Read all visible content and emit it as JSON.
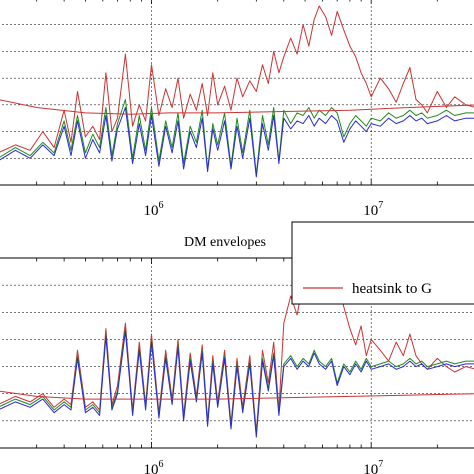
{
  "colors": {
    "red": "#cc3333",
    "green": "#1f8a1f",
    "blue": "#2a2ad4",
    "axis": "#000000"
  },
  "chart_data": [
    {
      "type": "line",
      "title": "",
      "xscale": "log",
      "xlim": [
        200000,
        30000000
      ],
      "ylim": [
        0,
        7
      ],
      "grid": true,
      "xticks": [
        {
          "base": "10",
          "exp": "6",
          "value": 1000000
        },
        {
          "base": "10",
          "exp": "7",
          "value": 10000000
        }
      ],
      "series": [
        {
          "color": "red",
          "x": [
            200000,
            240000,
            280000,
            320000,
            360000,
            400000,
            430000,
            460000,
            500000,
            540000,
            580000,
            620000,
            660000,
            700000,
            760000,
            820000,
            880000,
            940000,
            1000000,
            1080000,
            1160000,
            1240000,
            1320000,
            1400000,
            1500000,
            1600000,
            1700000,
            1800000,
            1900000,
            2000000,
            2150000,
            2300000,
            2450000,
            2600000,
            2800000,
            3000000,
            3200000,
            3400000,
            3600000,
            3800000,
            4000000,
            4300000,
            4600000,
            4900000,
            5200000,
            5500000,
            5800000,
            6200000,
            6600000,
            7000000,
            7500000,
            8000000,
            8500000,
            9000000,
            9500000,
            10000000,
            11000000,
            12000000,
            13000000,
            14000000,
            15000000,
            16000000,
            17000000,
            18000000,
            20000000,
            22000000,
            24000000,
            27000000,
            30000000
          ],
          "y": [
            1.2,
            1.5,
            1.3,
            2.0,
            1.4,
            2.8,
            1.6,
            3.5,
            1.8,
            2.2,
            1.7,
            4.2,
            2.0,
            2.5,
            4.9,
            2.2,
            3.0,
            2.4,
            4.5,
            2.6,
            3.6,
            2.9,
            4.0,
            2.5,
            3.4,
            2.8,
            3.8,
            2.6,
            4.2,
            3.0,
            3.7,
            2.8,
            4.0,
            3.3,
            3.9,
            3.5,
            4.5,
            3.8,
            5.0,
            4.2,
            4.8,
            5.5,
            4.9,
            6.0,
            5.2,
            6.2,
            6.7,
            6.3,
            5.6,
            6.5,
            5.8,
            5.2,
            4.8,
            4.2,
            3.8,
            3.3,
            4.0,
            3.6,
            3.1,
            3.8,
            4.4,
            3.2,
            3.0,
            2.7,
            3.5,
            2.9,
            3.3,
            3.0,
            2.9
          ]
        },
        {
          "color": "green",
          "x": [
            200000,
            240000,
            280000,
            320000,
            360000,
            400000,
            430000,
            460000,
            500000,
            540000,
            580000,
            620000,
            660000,
            700000,
            760000,
            820000,
            880000,
            940000,
            1000000,
            1080000,
            1160000,
            1240000,
            1320000,
            1400000,
            1500000,
            1600000,
            1700000,
            1800000,
            1900000,
            2000000,
            2150000,
            2300000,
            2450000,
            2600000,
            2800000,
            3000000,
            3200000,
            3400000,
            3600000,
            3800000,
            4000000,
            4300000,
            4600000,
            4900000,
            5200000,
            5500000,
            5800000,
            6200000,
            6600000,
            7000000,
            7500000,
            8000000,
            8500000,
            9000000,
            9500000,
            10000000,
            11000000,
            12000000,
            13000000,
            14000000,
            15000000,
            16000000,
            17000000,
            18000000,
            20000000,
            22000000,
            24000000,
            27000000,
            30000000
          ],
          "y": [
            1.0,
            1.4,
            1.1,
            1.6,
            1.2,
            2.4,
            1.3,
            2.6,
            1.2,
            1.9,
            1.4,
            2.9,
            1.1,
            2.3,
            3.2,
            1.0,
            2.6,
            1.3,
            2.9,
            0.9,
            2.4,
            1.4,
            2.7,
            0.8,
            2.2,
            1.6,
            2.8,
            0.6,
            2.3,
            1.5,
            2.7,
            0.7,
            2.5,
            1.2,
            2.8,
            0.4,
            2.6,
            1.5,
            2.9,
            0.9,
            2.8,
            2.3,
            2.7,
            2.6,
            2.9,
            2.5,
            2.8,
            2.6,
            2.9,
            2.7,
            1.8,
            2.3,
            2.6,
            2.4,
            2.2,
            2.5,
            2.4,
            2.7,
            2.5,
            2.6,
            2.8,
            2.6,
            2.7,
            2.5,
            2.6,
            2.8,
            2.6,
            2.7,
            2.7
          ]
        },
        {
          "color": "blue",
          "x": [
            200000,
            240000,
            280000,
            320000,
            360000,
            400000,
            430000,
            460000,
            500000,
            540000,
            580000,
            620000,
            660000,
            700000,
            760000,
            820000,
            880000,
            940000,
            1000000,
            1080000,
            1160000,
            1240000,
            1320000,
            1400000,
            1500000,
            1600000,
            1700000,
            1800000,
            1900000,
            2000000,
            2150000,
            2300000,
            2450000,
            2600000,
            2800000,
            3000000,
            3200000,
            3400000,
            3600000,
            3800000,
            4000000,
            4300000,
            4600000,
            4900000,
            5200000,
            5500000,
            5800000,
            6200000,
            6600000,
            7000000,
            7500000,
            8000000,
            8500000,
            9000000,
            9500000,
            10000000,
            11000000,
            12000000,
            13000000,
            14000000,
            15000000,
            16000000,
            17000000,
            18000000,
            20000000,
            22000000,
            24000000,
            27000000,
            30000000
          ],
          "y": [
            0.9,
            1.3,
            1.0,
            1.5,
            1.1,
            2.2,
            1.1,
            2.4,
            1.0,
            1.7,
            1.2,
            2.6,
            0.9,
            2.1,
            2.9,
            0.8,
            2.3,
            1.1,
            2.6,
            0.7,
            2.2,
            1.2,
            2.4,
            0.6,
            2.0,
            1.4,
            2.5,
            0.5,
            2.1,
            1.3,
            2.4,
            0.6,
            2.2,
            1.0,
            2.5,
            0.3,
            2.3,
            1.3,
            2.6,
            0.8,
            2.5,
            2.1,
            2.4,
            2.3,
            2.6,
            2.2,
            2.5,
            2.3,
            2.6,
            2.4,
            1.6,
            2.1,
            2.4,
            2.2,
            2.0,
            2.3,
            2.2,
            2.5,
            2.3,
            2.4,
            2.6,
            2.4,
            2.5,
            2.3,
            2.4,
            2.6,
            2.4,
            2.5,
            2.5
          ]
        },
        {
          "color": "red",
          "x": [
            200000,
            300000,
            500000,
            800000,
            1200000,
            2000000,
            4000000,
            8000000,
            15000000,
            30000000
          ],
          "y": [
            3.2,
            2.9,
            2.7,
            2.65,
            2.7,
            2.7,
            2.75,
            2.8,
            2.9,
            3.0
          ]
        }
      ]
    },
    {
      "type": "line",
      "title": "DM envelopes",
      "xscale": "log",
      "xlim": [
        200000,
        30000000
      ],
      "ylim": [
        0,
        7
      ],
      "grid": true,
      "legend": {
        "placement": "top-right",
        "entries": [
          {
            "name": "heatsink to G",
            "color": "red"
          }
        ]
      },
      "xticks": [
        {
          "base": "10",
          "exp": "6",
          "value": 1000000
        },
        {
          "base": "10",
          "exp": "7",
          "value": 10000000
        }
      ],
      "series": [
        {
          "color": "red",
          "x": [
            200000,
            240000,
            280000,
            320000,
            360000,
            400000,
            430000,
            460000,
            500000,
            540000,
            580000,
            620000,
            660000,
            700000,
            760000,
            820000,
            880000,
            940000,
            1000000,
            1080000,
            1160000,
            1240000,
            1320000,
            1400000,
            1500000,
            1600000,
            1700000,
            1800000,
            1900000,
            2000000,
            2150000,
            2300000,
            2450000,
            2600000,
            2800000,
            3000000,
            3200000,
            3400000,
            3600000,
            3800000,
            4000000,
            4300000,
            4600000,
            4900000,
            5200000,
            5500000,
            5800000,
            6200000,
            6600000,
            7000000,
            7500000,
            8000000,
            8500000,
            9000000,
            9500000,
            10000000,
            11000000,
            12000000,
            13000000,
            14000000,
            15000000,
            16000000,
            17000000,
            18000000,
            20000000,
            22000000,
            24000000,
            27000000,
            30000000
          ],
          "y": [
            1.6,
            1.9,
            1.7,
            2.0,
            1.5,
            1.8,
            1.6,
            3.6,
            1.5,
            1.7,
            1.4,
            4.4,
            1.6,
            2.3,
            4.6,
            1.4,
            3.9,
            1.6,
            4.2,
            1.3,
            3.6,
            1.8,
            4.0,
            1.2,
            3.5,
            1.9,
            3.8,
            1.0,
            3.4,
            1.7,
            3.6,
            0.9,
            3.3,
            1.5,
            3.4,
            0.6,
            3.6,
            2.4,
            3.9,
            1.4,
            4.6,
            5.6,
            4.9,
            6.1,
            5.6,
            6.6,
            6.0,
            6.5,
            5.4,
            6.3,
            5.2,
            4.4,
            3.8,
            4.5,
            3.4,
            4.0,
            3.6,
            3.2,
            3.9,
            3.4,
            4.2,
            3.4,
            3.1,
            2.9,
            3.3,
            3.0,
            2.8,
            3.0,
            2.9
          ]
        },
        {
          "color": "green",
          "x": [
            200000,
            240000,
            280000,
            320000,
            360000,
            400000,
            430000,
            460000,
            500000,
            540000,
            580000,
            620000,
            660000,
            700000,
            760000,
            820000,
            880000,
            940000,
            1000000,
            1080000,
            1160000,
            1240000,
            1320000,
            1400000,
            1500000,
            1600000,
            1700000,
            1800000,
            1900000,
            2000000,
            2150000,
            2300000,
            2450000,
            2600000,
            2800000,
            3000000,
            3200000,
            3400000,
            3600000,
            3800000,
            4000000,
            4300000,
            4600000,
            4900000,
            5200000,
            5500000,
            5800000,
            6200000,
            6600000,
            7000000,
            7500000,
            8000000,
            8500000,
            9000000,
            9500000,
            10000000,
            11000000,
            12000000,
            13000000,
            14000000,
            15000000,
            16000000,
            17000000,
            18000000,
            20000000,
            22000000,
            24000000,
            27000000,
            30000000
          ],
          "y": [
            1.5,
            1.8,
            1.6,
            1.9,
            1.4,
            1.7,
            1.5,
            3.4,
            1.4,
            1.6,
            1.3,
            4.2,
            1.5,
            2.1,
            4.4,
            1.3,
            3.7,
            1.5,
            4.0,
            1.2,
            3.4,
            1.7,
            3.8,
            1.1,
            3.3,
            1.8,
            3.6,
            0.9,
            3.2,
            1.6,
            3.4,
            0.8,
            3.1,
            1.4,
            3.2,
            0.5,
            3.3,
            2.2,
            3.5,
            1.3,
            3.1,
            3.4,
            3.0,
            3.3,
            3.1,
            3.6,
            3.2,
            3.0,
            3.3,
            2.4,
            3.1,
            2.8,
            3.2,
            2.9,
            3.3,
            3.0,
            3.1,
            3.2,
            3.0,
            3.1,
            3.3,
            3.1,
            3.2,
            3.0,
            3.1,
            3.2,
            3.1,
            3.2,
            3.2
          ]
        },
        {
          "color": "blue",
          "x": [
            200000,
            240000,
            280000,
            320000,
            360000,
            400000,
            430000,
            460000,
            500000,
            540000,
            580000,
            620000,
            660000,
            700000,
            760000,
            820000,
            880000,
            940000,
            1000000,
            1080000,
            1160000,
            1240000,
            1320000,
            1400000,
            1500000,
            1600000,
            1700000,
            1800000,
            1900000,
            2000000,
            2150000,
            2300000,
            2450000,
            2600000,
            2800000,
            3000000,
            3200000,
            3400000,
            3600000,
            3800000,
            4000000,
            4300000,
            4600000,
            4900000,
            5200000,
            5500000,
            5800000,
            6200000,
            6600000,
            7000000,
            7500000,
            8000000,
            8500000,
            9000000,
            9500000,
            10000000,
            11000000,
            12000000,
            13000000,
            14000000,
            15000000,
            16000000,
            17000000,
            18000000,
            20000000,
            22000000,
            24000000,
            27000000,
            30000000
          ],
          "y": [
            1.4,
            1.7,
            1.5,
            1.8,
            1.3,
            1.6,
            1.4,
            3.3,
            1.3,
            1.5,
            1.2,
            4.1,
            1.4,
            2.0,
            4.3,
            1.2,
            3.6,
            1.4,
            3.9,
            1.1,
            3.3,
            1.6,
            3.7,
            1.0,
            3.2,
            1.7,
            3.5,
            0.8,
            3.1,
            1.5,
            3.3,
            0.7,
            3.0,
            1.3,
            3.1,
            0.4,
            3.2,
            2.1,
            3.4,
            1.2,
            3.0,
            3.3,
            2.9,
            3.2,
            3.0,
            3.5,
            3.1,
            2.9,
            3.2,
            2.3,
            3.0,
            2.7,
            3.1,
            2.8,
            3.2,
            2.9,
            3.0,
            3.1,
            2.9,
            3.0,
            3.2,
            3.0,
            3.1,
            2.9,
            3.0,
            3.1,
            3.0,
            3.1,
            3.1
          ]
        },
        {
          "color": "red",
          "x": [
            200000,
            300000,
            500000,
            800000,
            1200000,
            2000000,
            4000000,
            8000000,
            15000000,
            30000000
          ],
          "y": [
            2.1,
            1.9,
            1.8,
            1.8,
            1.8,
            1.8,
            1.85,
            1.9,
            1.95,
            2.0
          ]
        }
      ]
    }
  ]
}
